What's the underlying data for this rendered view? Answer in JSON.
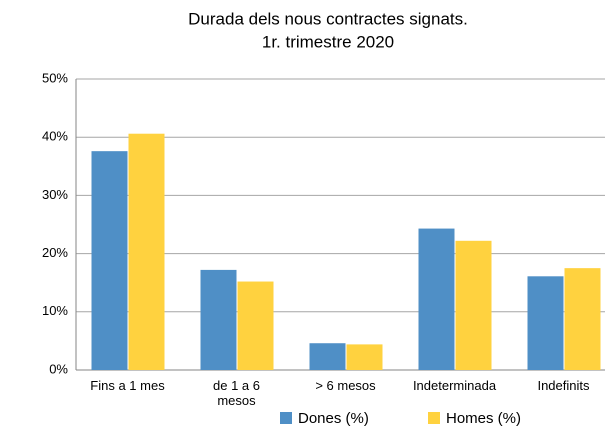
{
  "chart_data": {
    "type": "bar",
    "title": "Durada dels nous contractes signats.",
    "subtitle": "1r. trimestre 2020",
    "categories": [
      "Fins a 1 mes",
      "de 1 a 6 mesos",
      "> 6 mesos",
      "Indeterminada",
      "Indefinits"
    ],
    "series": [
      {
        "name": "Dones (%)",
        "color": "#4f8fc6",
        "values": [
          37.6,
          17.2,
          4.6,
          24.3,
          16.1
        ]
      },
      {
        "name": "Homes (%)",
        "color": "#ffd23f",
        "values": [
          40.6,
          15.2,
          4.4,
          22.2,
          17.5
        ]
      }
    ],
    "ylim": [
      0,
      50
    ],
    "yticks": [
      {
        "value": 0,
        "label": "0%"
      },
      {
        "value": 10,
        "label": "10%"
      },
      {
        "value": 20,
        "label": "20%"
      },
      {
        "value": 30,
        "label": "30%"
      },
      {
        "value": 40,
        "label": "40%"
      },
      {
        "value": 50,
        "label": "50%"
      }
    ],
    "grid": true,
    "legend": "bottom"
  }
}
